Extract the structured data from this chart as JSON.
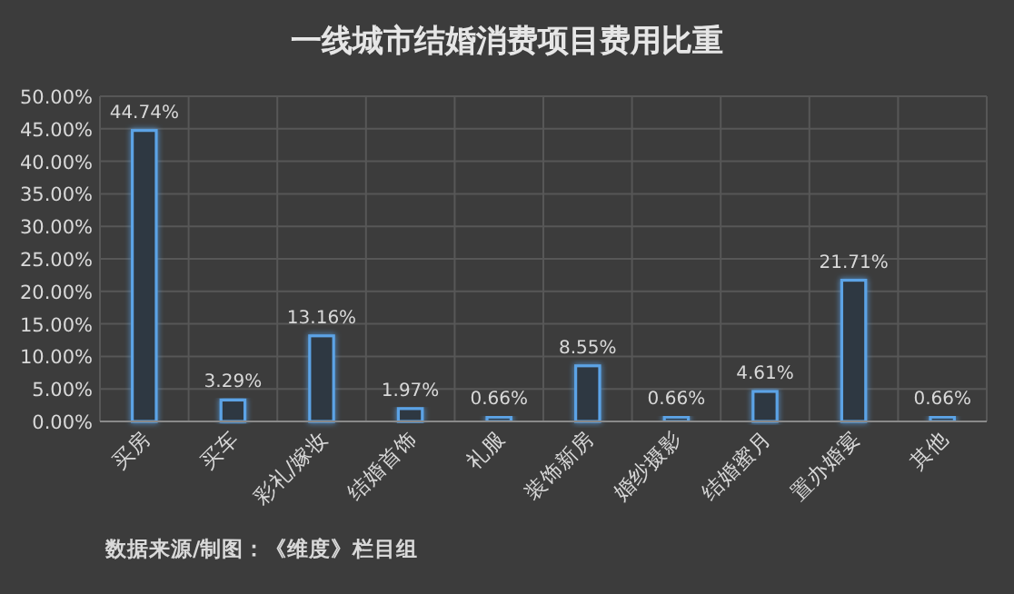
{
  "chart_data": {
    "type": "bar",
    "title": "一线城市结婚消费项目费用比重",
    "categories": [
      "买房",
      "买车",
      "彩礼/嫁妆",
      "结婚首饰",
      "礼服",
      "装饰新房",
      "婚纱摄影",
      "结婚蜜月",
      "置办婚宴",
      "其他"
    ],
    "values": [
      44.74,
      3.29,
      13.16,
      1.97,
      0.66,
      8.55,
      0.66,
      4.61,
      21.71,
      0.66
    ],
    "value_labels": [
      "44.74%",
      "3.29%",
      "13.16%",
      "1.97%",
      "0.66%",
      "8.55%",
      "0.66%",
      "4.61%",
      "21.71%",
      "0.66%"
    ],
    "color": "#5ba3e6",
    "ylim": [
      0,
      50
    ],
    "yticks": [
      {
        "value": 0,
        "label": "0.00%"
      },
      {
        "value": 5,
        "label": "5.00%"
      },
      {
        "value": 10,
        "label": "10.00%"
      },
      {
        "value": 15,
        "label": "15.00%"
      },
      {
        "value": 20,
        "label": "20.00%"
      },
      {
        "value": 25,
        "label": "25.00%"
      },
      {
        "value": 30,
        "label": "30.00%"
      },
      {
        "value": 35,
        "label": "35.00%"
      },
      {
        "value": 40,
        "label": "40.00%"
      },
      {
        "value": 45,
        "label": "45.00%"
      },
      {
        "value": 50,
        "label": "50.00%"
      }
    ],
    "grid": true,
    "annotations": [
      "数据来源/制图：《维度》栏目组"
    ]
  }
}
